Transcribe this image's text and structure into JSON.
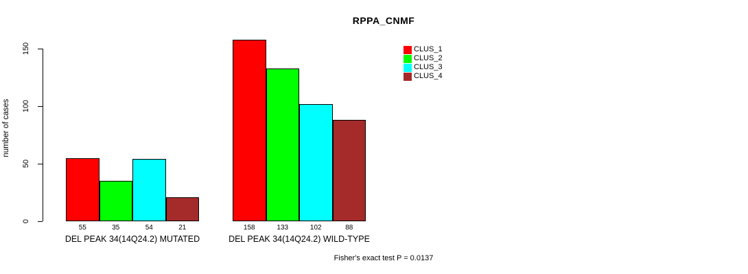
{
  "chart_data": {
    "type": "bar",
    "title": "RPPA_CNMF",
    "ylabel": "number of cases",
    "xlabel": "",
    "ylim": [
      0,
      150
    ],
    "yticks": [
      0,
      50,
      100,
      150
    ],
    "grid": false,
    "legend_position": "top-right",
    "bar_value_labels": true,
    "categories": [
      "DEL PEAK 34(14Q24.2) MUTATED",
      "DEL PEAK 34(14Q24.2) WILD-TYPE"
    ],
    "series": [
      {
        "name": "CLUS_1",
        "color": "#FF0000",
        "values": [
          55,
          158
        ]
      },
      {
        "name": "CLUS_2",
        "color": "#00FF00",
        "values": [
          35,
          133
        ]
      },
      {
        "name": "CLUS_3",
        "color": "#00FFFF",
        "values": [
          54,
          102
        ]
      },
      {
        "name": "CLUS_4",
        "color": "#A52A2A",
        "values": [
          21,
          88
        ]
      }
    ],
    "annotation": "Fisher's exact test P = 0.0137"
  }
}
